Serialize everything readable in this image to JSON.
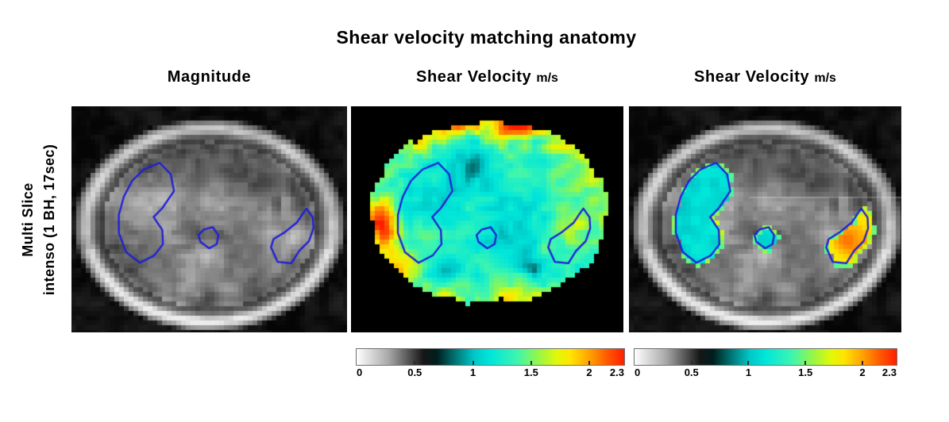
{
  "figure_title": "Shear velocity matching anatomy",
  "row_label": {
    "line1": "Multi Slice",
    "line2": "intenso (1 BH, 17sec)"
  },
  "panels": [
    {
      "title": "Magnitude",
      "unit": ""
    },
    {
      "title": "Shear Velocity",
      "unit": "m/s"
    },
    {
      "title": "Shear Velocity",
      "unit": "m/s"
    }
  ],
  "colorbar": {
    "min": 0,
    "max": 2.3,
    "units": "m/s",
    "tick_labels": [
      "0",
      "0.5",
      "1",
      "1.5",
      "2",
      "2.3"
    ],
    "tick_values": [
      0,
      0.5,
      1,
      1.5,
      2,
      2.3
    ],
    "notch_values": [
      0.5,
      1,
      1.5,
      2
    ],
    "gradient_stops": [
      [
        0.0,
        "#ffffff"
      ],
      [
        0.12,
        "#a8a8a8"
      ],
      [
        0.25,
        "#161616"
      ],
      [
        0.3,
        "#001e1e"
      ],
      [
        0.36,
        "#006a6a"
      ],
      [
        0.44,
        "#00c8c8"
      ],
      [
        0.5,
        "#00e6da"
      ],
      [
        0.6,
        "#3df5b0"
      ],
      [
        0.68,
        "#97f646"
      ],
      [
        0.75,
        "#e2f807"
      ],
      [
        0.8,
        "#ffe400"
      ],
      [
        0.87,
        "#ffa200"
      ],
      [
        0.93,
        "#ff6000"
      ],
      [
        1.0,
        "#ff1e00"
      ]
    ]
  },
  "roi": {
    "outline_color": "#1d1dd8",
    "regions": {
      "liver": [
        [
          0.32,
          0.25
        ],
        [
          0.36,
          0.3
        ],
        [
          0.372,
          0.375
        ],
        [
          0.33,
          0.45
        ],
        [
          0.298,
          0.49
        ],
        [
          0.33,
          0.548
        ],
        [
          0.332,
          0.61
        ],
        [
          0.3,
          0.66
        ],
        [
          0.248,
          0.692
        ],
        [
          0.198,
          0.645
        ],
        [
          0.172,
          0.56
        ],
        [
          0.172,
          0.48
        ],
        [
          0.19,
          0.4
        ],
        [
          0.22,
          0.33
        ],
        [
          0.262,
          0.28
        ]
      ],
      "paraspinal": [
        [
          0.48,
          0.545
        ],
        [
          0.513,
          0.535
        ],
        [
          0.533,
          0.57
        ],
        [
          0.527,
          0.61
        ],
        [
          0.5,
          0.628
        ],
        [
          0.468,
          0.6
        ],
        [
          0.461,
          0.57
        ]
      ],
      "spleen": [
        [
          0.853,
          0.452
        ],
        [
          0.876,
          0.492
        ],
        [
          0.878,
          0.54
        ],
        [
          0.862,
          0.596
        ],
        [
          0.826,
          0.64
        ],
        [
          0.798,
          0.694
        ],
        [
          0.748,
          0.688
        ],
        [
          0.724,
          0.624
        ],
        [
          0.733,
          0.588
        ],
        [
          0.775,
          0.556
        ],
        [
          0.818,
          0.514
        ],
        [
          0.84,
          0.474
        ]
      ]
    }
  },
  "overlay_velocity": {
    "liver": 1.1,
    "paraspinal": 1.1,
    "spleen": 1.9,
    "fringe": 1.5
  }
}
